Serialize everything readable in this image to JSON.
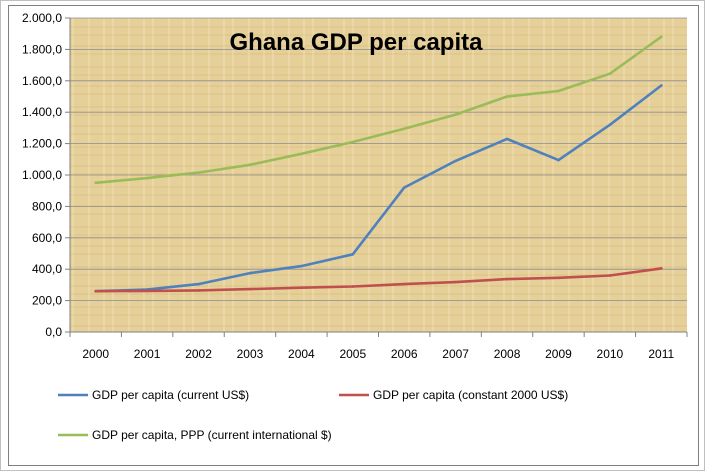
{
  "chart_data": {
    "type": "line",
    "title": "Ghana GDP per capita",
    "xlabel": "",
    "ylabel": "",
    "categories": [
      "2000",
      "2001",
      "2002",
      "2003",
      "2004",
      "2005",
      "2006",
      "2007",
      "2008",
      "2009",
      "2010",
      "2011"
    ],
    "ylim": [
      0,
      2000
    ],
    "yticks": [
      "0,0",
      "200,0",
      "400,0",
      "600,0",
      "800,0",
      "1.000,0",
      "1.200,0",
      "1.400,0",
      "1.600,0",
      "1.800,0",
      "2.000,0"
    ],
    "grid": true,
    "legend": "bottom",
    "series": [
      {
        "name": "GDP per capita (current US$)",
        "color": "#4f81bd",
        "values": [
          260,
          270,
          305,
          375,
          420,
          495,
          920,
          1090,
          1230,
          1095,
          1320,
          1570
        ]
      },
      {
        "name": "GDP per capita (constant 2000 US$)",
        "color": "#c0504d",
        "values": [
          260,
          262,
          265,
          273,
          282,
          290,
          305,
          318,
          337,
          345,
          360,
          405
        ]
      },
      {
        "name": "GDP per capita, PPP (current international $)",
        "color": "#9bbb59",
        "values": [
          950,
          980,
          1015,
          1065,
          1135,
          1210,
          1295,
          1385,
          1500,
          1535,
          1645,
          1880
        ]
      }
    ]
  }
}
